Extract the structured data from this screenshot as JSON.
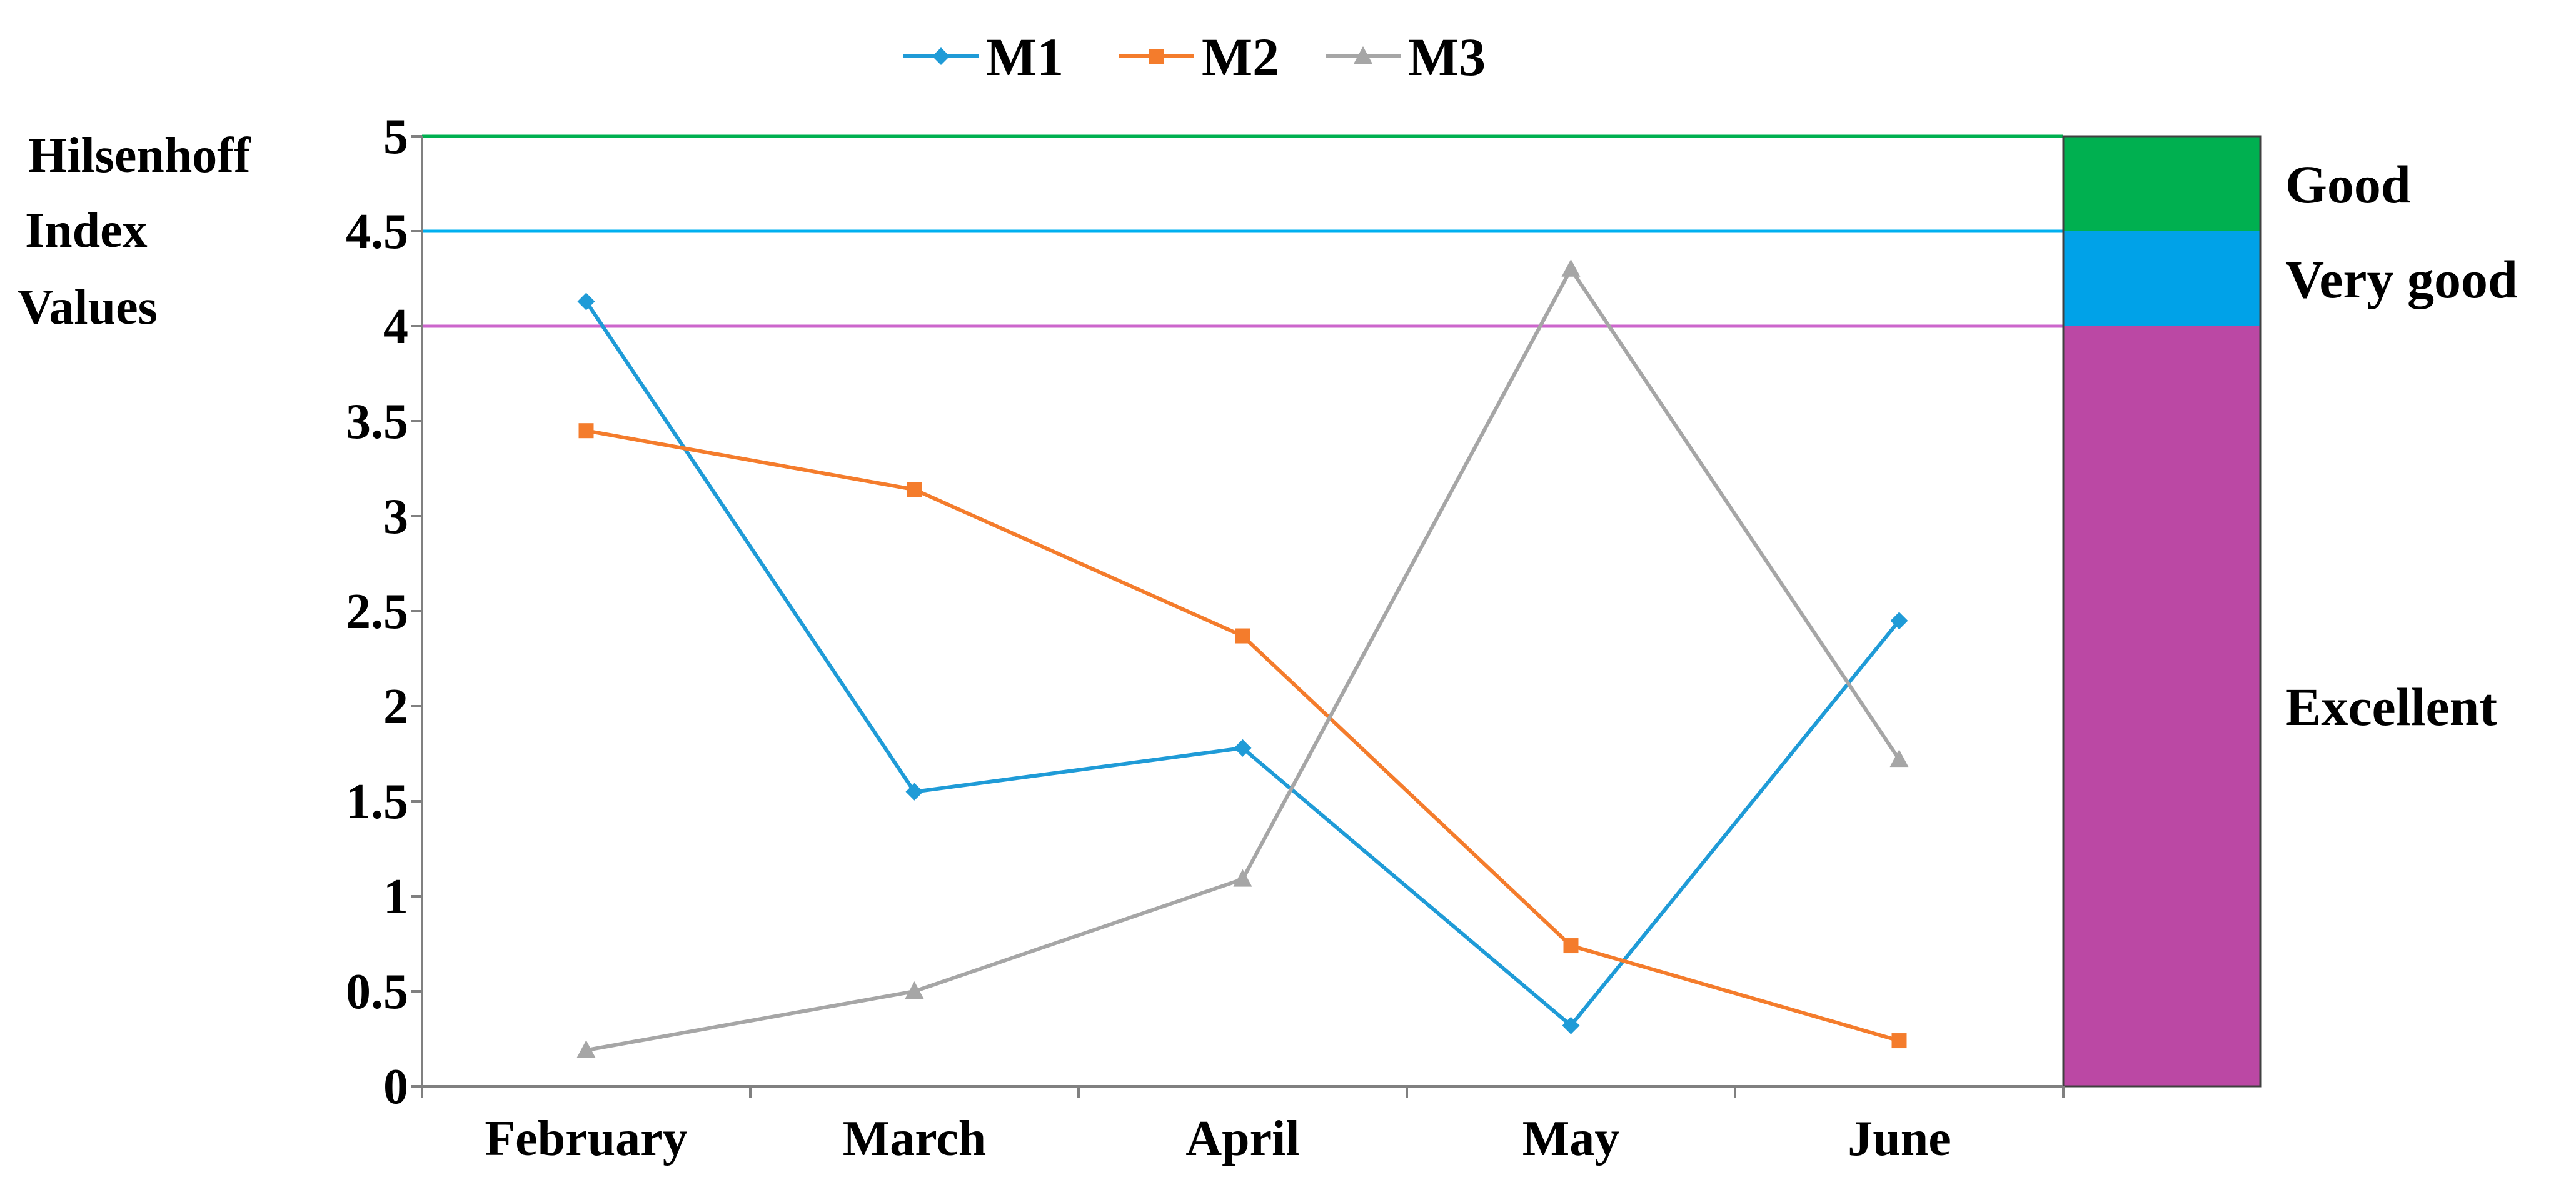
{
  "chart_data": {
    "type": "line",
    "title": "",
    "ylabel_lines": [
      "Hilsenhoff",
      "Index",
      "Values"
    ],
    "xlabel": "",
    "categories": [
      "February",
      "March",
      "April",
      "May",
      "June"
    ],
    "ylim": [
      0,
      5
    ],
    "yticks": [
      "0",
      "0.5",
      "1",
      "1.5",
      "2",
      "2.5",
      "3",
      "3.5",
      "4",
      "4.5",
      "5"
    ],
    "series": [
      {
        "name": "M1",
        "color": "#1f9bd7",
        "marker": "diamond",
        "values": [
          4.13,
          1.55,
          1.78,
          0.32,
          2.45
        ]
      },
      {
        "name": "M2",
        "color": "#f47c2c",
        "marker": "square",
        "values": [
          3.45,
          3.14,
          2.37,
          0.74,
          0.24
        ]
      },
      {
        "name": "M3",
        "color": "#a6a6a6",
        "marker": "triangle",
        "values": [
          0.19,
          0.5,
          1.09,
          4.3,
          1.72
        ]
      }
    ],
    "reference_lines": [
      {
        "value": 5,
        "color": "#00b050"
      },
      {
        "value": 4.5,
        "color": "#00b0f0"
      },
      {
        "value": 4,
        "color": "#cc66cc"
      }
    ],
    "bands": [
      {
        "label": "Good",
        "from": 4.5,
        "to": 5,
        "color": "#00b050"
      },
      {
        "label": "Very good",
        "from": 4,
        "to": 4.5,
        "color": "#00a2e8"
      },
      {
        "label": "Excellent",
        "from": 0,
        "to": 4,
        "color": "#bb48a4"
      }
    ],
    "legend_position": "top-center",
    "grid": false
  }
}
